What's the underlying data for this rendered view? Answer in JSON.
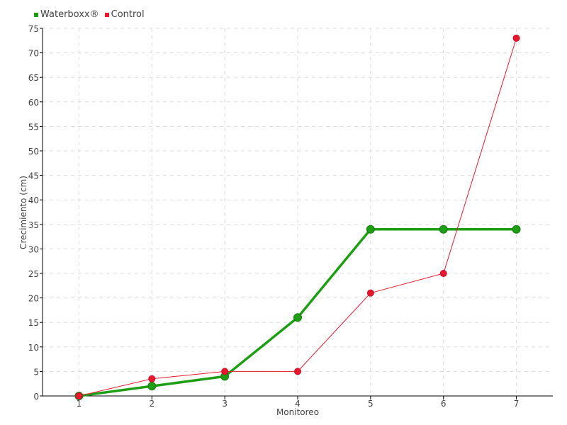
{
  "chart_data": {
    "type": "line",
    "title": "",
    "xlabel": "Monitoreo",
    "ylabel": "Crecimiento (cm)",
    "categories": [
      "1",
      "2",
      "3",
      "4",
      "5",
      "6",
      "7"
    ],
    "ylim": [
      0,
      75
    ],
    "yticks": [
      "0",
      "5",
      "10",
      "15",
      "20",
      "25",
      "30",
      "35",
      "40",
      "45",
      "50",
      "55",
      "60",
      "65",
      "70",
      "75"
    ],
    "grid": true,
    "legend_position": "top-left",
    "series": [
      {
        "name": "Waterboxx®",
        "color": "#1e9e14",
        "values": [
          0,
          2,
          4,
          16,
          34,
          34,
          34
        ]
      },
      {
        "name": "Control",
        "color": "#e8182c",
        "values": [
          0,
          3.5,
          5,
          5,
          21,
          25,
          73
        ]
      }
    ]
  }
}
